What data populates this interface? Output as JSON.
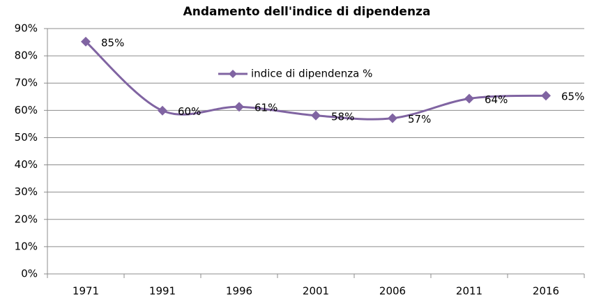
{
  "chart_data": {
    "type": "line",
    "title": "Andamento dell'indice di dipendenza",
    "categories": [
      "1971",
      "1991",
      "1996",
      "2001",
      "2006",
      "2011",
      "2016"
    ],
    "series": [
      {
        "name": "indice di dipendenza %",
        "color": "#8064a2",
        "values": [
          85.2,
          59.9,
          61.3,
          58.1,
          57.1,
          64.3,
          65.4
        ],
        "value_labels": [
          "85%",
          "60%",
          "61%",
          "58%",
          "57%",
          "64%",
          "65%"
        ]
      }
    ],
    "ylim": [
      0,
      90
    ],
    "yticks": [
      {
        "value": 0,
        "label": "0%"
      },
      {
        "value": 10,
        "label": "10%"
      },
      {
        "value": 20,
        "label": "20%"
      },
      {
        "value": 30,
        "label": "30%"
      },
      {
        "value": 40,
        "label": "40%"
      },
      {
        "value": 50,
        "label": "50%"
      },
      {
        "value": 60,
        "label": "60%"
      },
      {
        "value": 70,
        "label": "70%"
      },
      {
        "value": 80,
        "label": "80%"
      },
      {
        "value": 90,
        "label": "90%"
      }
    ],
    "grid": true,
    "smooth": true,
    "legend": "top"
  }
}
